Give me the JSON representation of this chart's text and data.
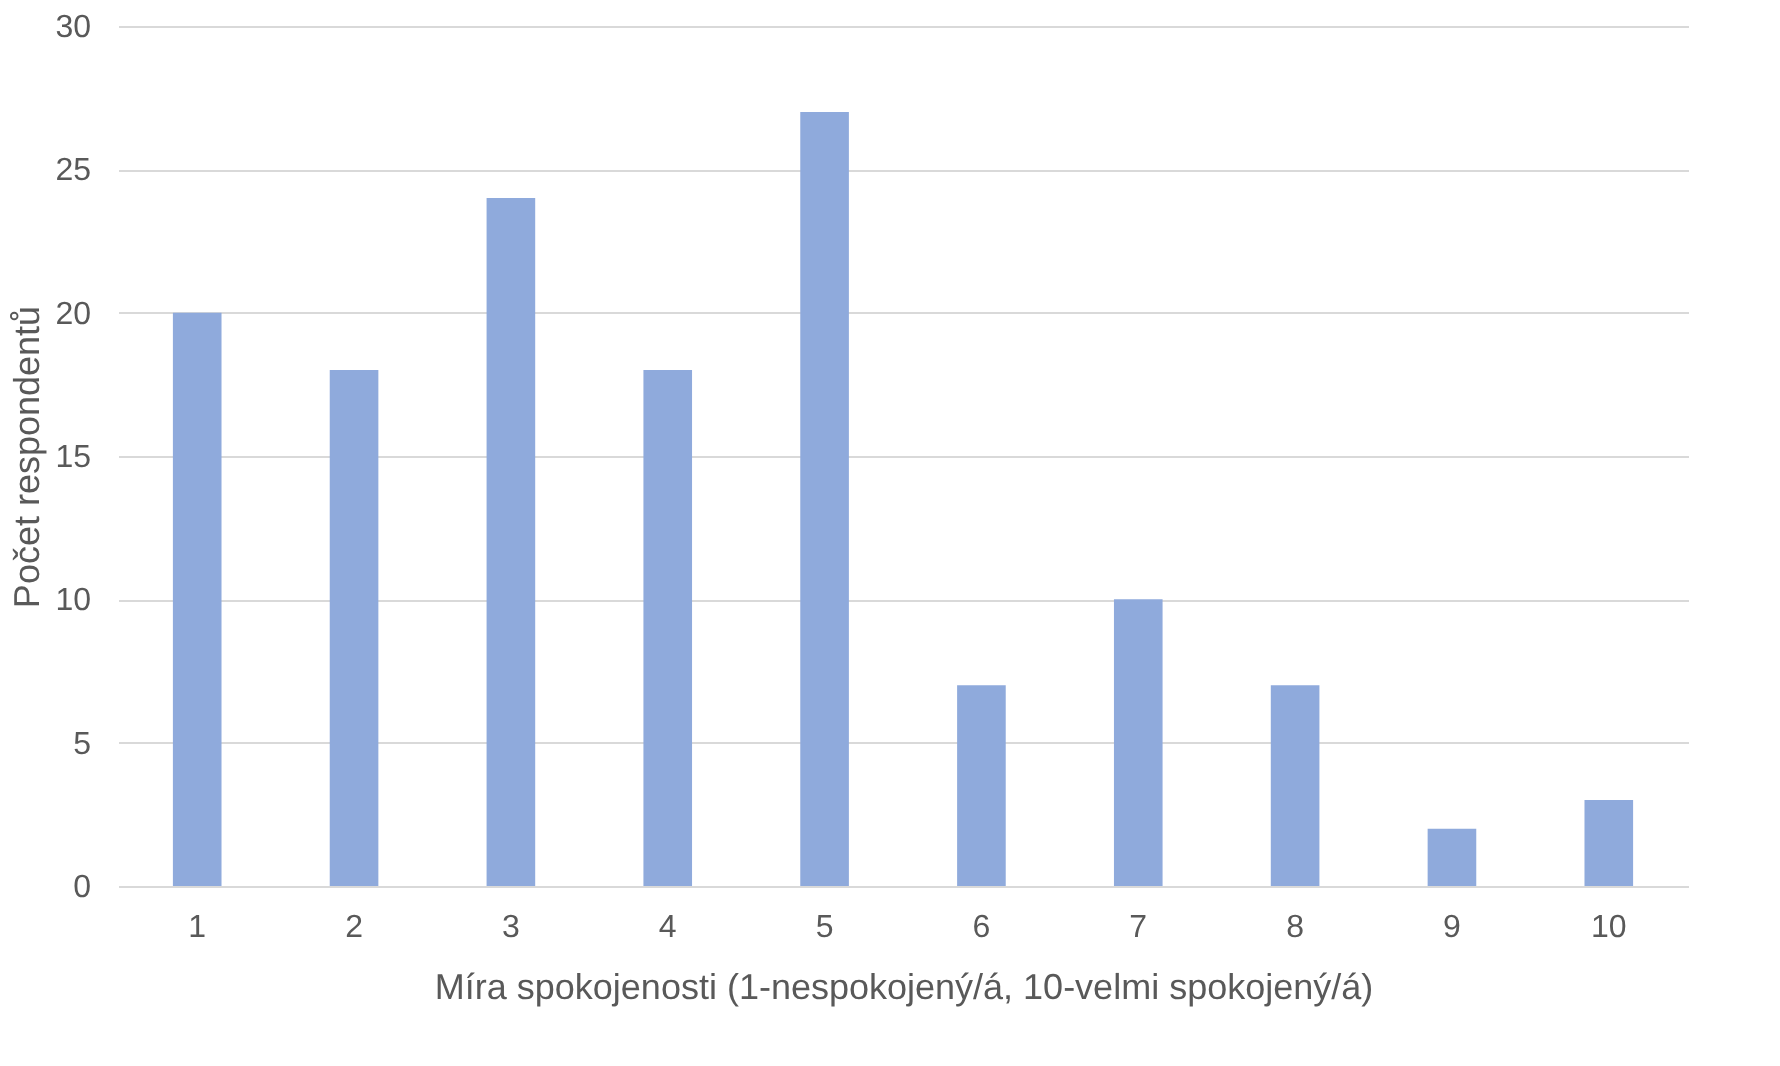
{
  "chart_data": {
    "type": "bar",
    "xlabel": "Míra spokojenosti (1-nespokojený/á, 10-velmi spokojený/á)",
    "ylabel": "Počet respondentů",
    "categories": [
      "1",
      "2",
      "3",
      "4",
      "5",
      "6",
      "7",
      "8",
      "9",
      "10"
    ],
    "values": [
      20,
      18,
      24,
      18,
      27,
      7,
      10,
      7,
      2,
      3
    ],
    "color": "#8faadc",
    "ylim": [
      0,
      30
    ],
    "yticks": [
      0,
      5,
      10,
      15,
      20,
      25,
      30
    ],
    "grid": "y"
  }
}
